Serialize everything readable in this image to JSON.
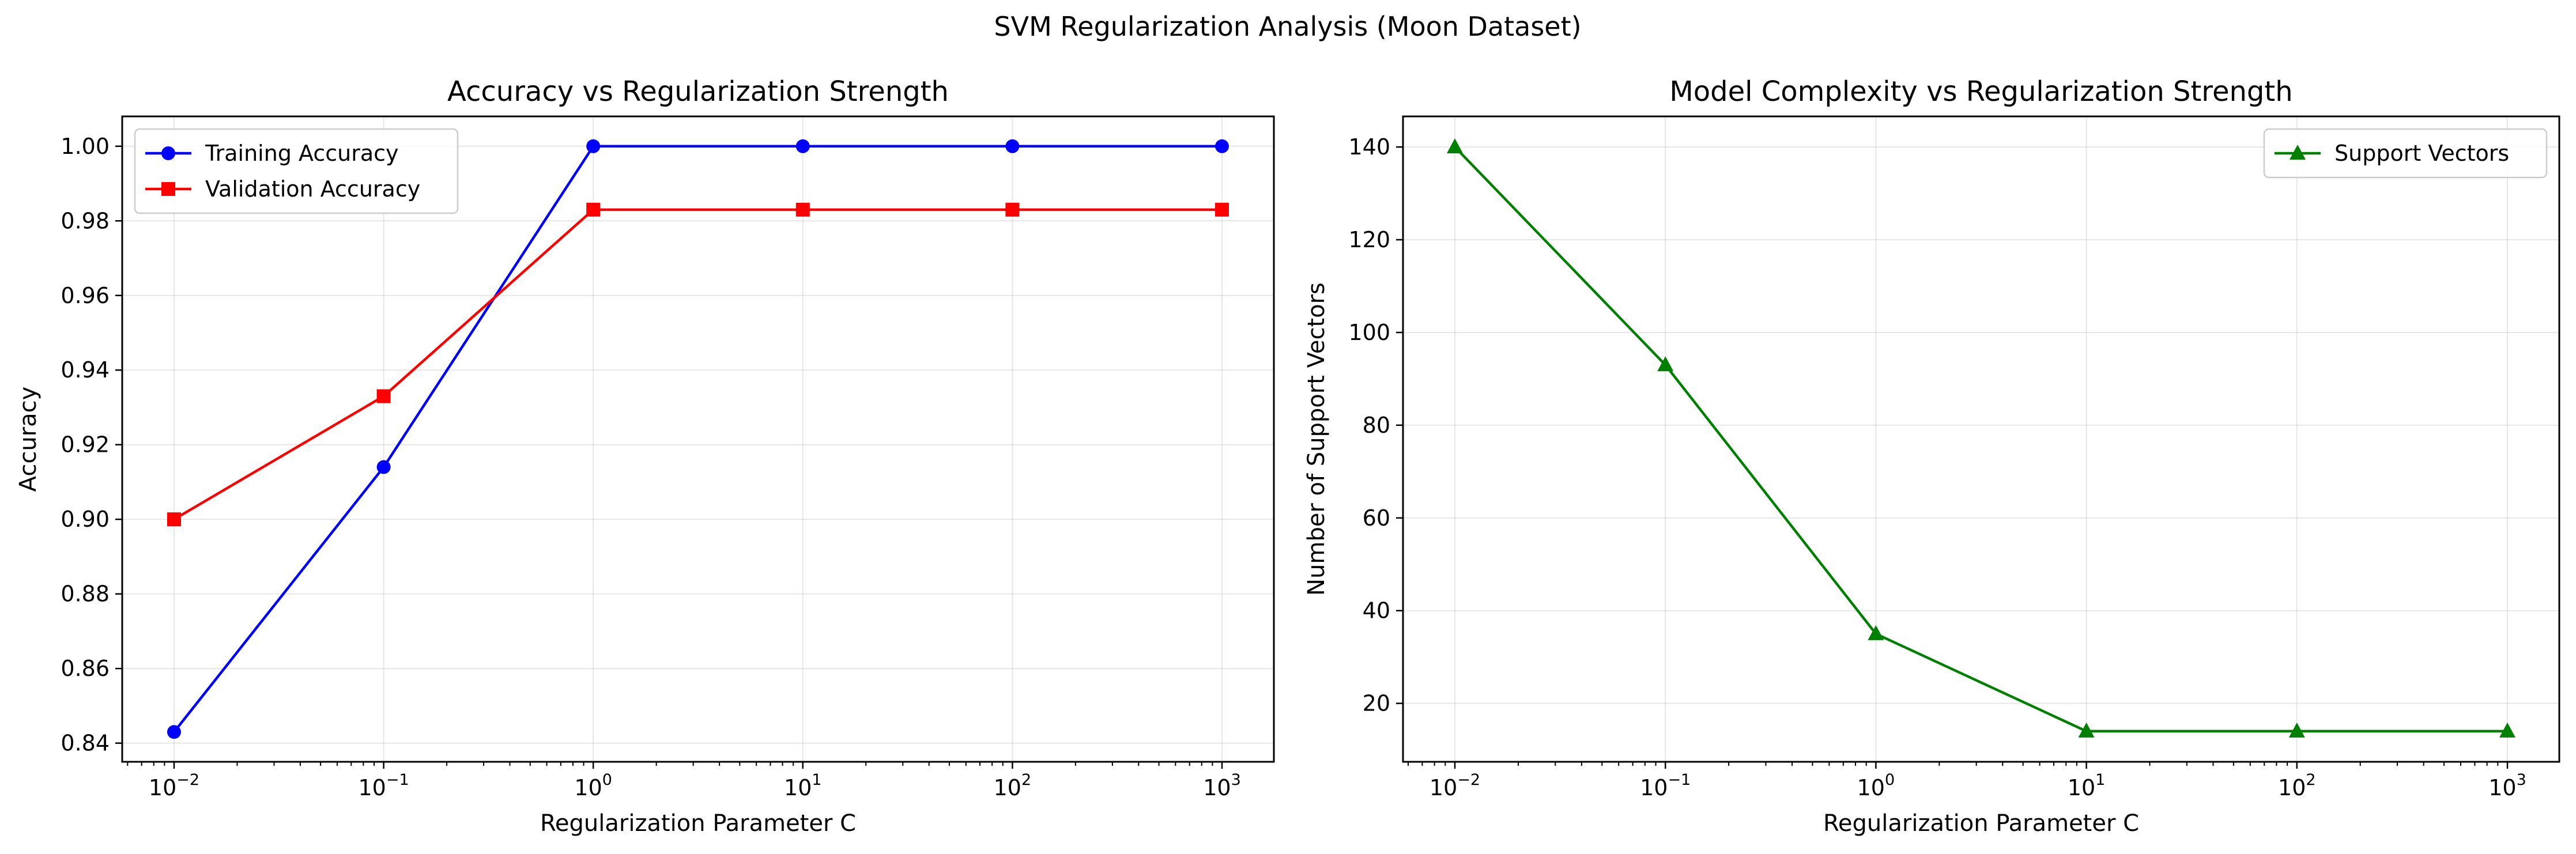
{
  "figure": {
    "suptitle": "SVM Regularization Analysis (Moon Dataset)"
  },
  "chart_data": [
    {
      "type": "line",
      "title": "Accuracy vs Regularization Strength",
      "xlabel": "Regularization Parameter C",
      "ylabel": "Accuracy",
      "xscale": "log",
      "x": [
        0.01,
        0.1,
        1,
        10,
        100,
        1000
      ],
      "x_ticks": [
        {
          "base": "10",
          "exp": "−2"
        },
        {
          "base": "10",
          "exp": "−1"
        },
        {
          "base": "10",
          "exp": "0"
        },
        {
          "base": "10",
          "exp": "1"
        },
        {
          "base": "10",
          "exp": "2"
        },
        {
          "base": "10",
          "exp": "3"
        }
      ],
      "ylim": [
        0.835,
        1.008
      ],
      "y_ticks": [
        "0.84",
        "0.86",
        "0.88",
        "0.90",
        "0.92",
        "0.94",
        "0.96",
        "0.98",
        "1.00"
      ],
      "grid": true,
      "legend_position": "top-left",
      "series": [
        {
          "name": "Training Accuracy",
          "color": "#0000ff",
          "marker": "circle",
          "values": [
            0.843,
            0.914,
            1.0,
            1.0,
            1.0,
            1.0
          ]
        },
        {
          "name": "Validation Accuracy",
          "color": "#ff0000",
          "marker": "square",
          "values": [
            0.9,
            0.933,
            0.983,
            0.983,
            0.983,
            0.983
          ]
        }
      ]
    },
    {
      "type": "line",
      "title": "Model Complexity vs Regularization Strength",
      "xlabel": "Regularization Parameter C",
      "ylabel": "Number of Support Vectors",
      "xscale": "log",
      "x": [
        0.01,
        0.1,
        1,
        10,
        100,
        1000
      ],
      "x_ticks": [
        {
          "base": "10",
          "exp": "−2"
        },
        {
          "base": "10",
          "exp": "−1"
        },
        {
          "base": "10",
          "exp": "0"
        },
        {
          "base": "10",
          "exp": "1"
        },
        {
          "base": "10",
          "exp": "2"
        },
        {
          "base": "10",
          "exp": "3"
        }
      ],
      "ylim": [
        7.4,
        146.6
      ],
      "y_ticks": [
        "20",
        "40",
        "60",
        "80",
        "100",
        "120",
        "140"
      ],
      "grid": true,
      "legend_position": "top-right",
      "series": [
        {
          "name": "Support Vectors",
          "color": "#008000",
          "marker": "triangle",
          "values": [
            140,
            93,
            35,
            14,
            14,
            14
          ]
        }
      ]
    }
  ]
}
